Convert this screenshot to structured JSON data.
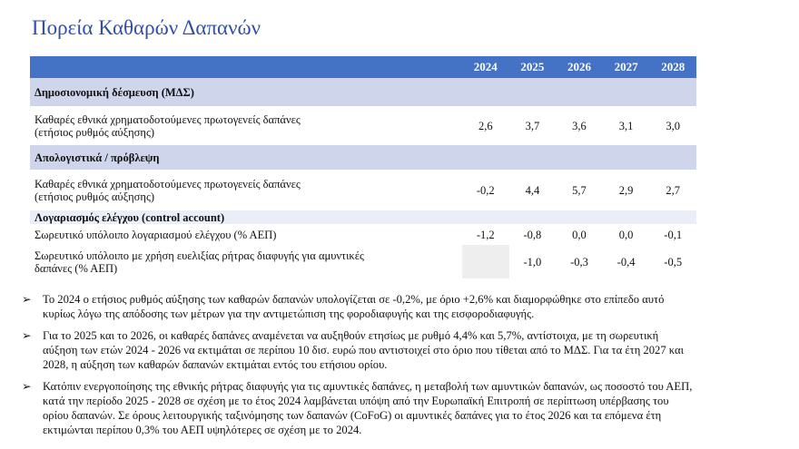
{
  "title": "Πορεία Καθαρών Δαπανών",
  "table": {
    "header": [
      "2024",
      "2025",
      "2026",
      "2027",
      "2028"
    ],
    "sections": [
      {
        "heading": "Δημοσιονομική δέσμευση (ΜΔΣ)",
        "rows": [
          {
            "label": [
              "Καθαρές εθνικά χρηματοδοτούμενες πρωτογενείς δαπάνες",
              "(ετήσιος ρυθμός αύξησης)"
            ],
            "values": [
              "2,6",
              "3,7",
              "3,6",
              "3,1",
              "3,0"
            ]
          }
        ]
      },
      {
        "heading": "Απολογιστικά / πρόβλεψη",
        "rows": [
          {
            "label": [
              "Καθαρές εθνικά χρηματοδοτούμενες πρωτογενείς δαπάνες",
              "(ετήσιος ρυθμός αύξησης)"
            ],
            "values": [
              "-0,2",
              "4,4",
              "5,7",
              "2,9",
              "2,7"
            ]
          }
        ]
      },
      {
        "heading": "Λογαριασμός ελέγχου (control account)",
        "rows": [
          {
            "label": [
              "Σωρευτικό υπόλοιπο λογαριασμού ελέγχου (% ΑΕΠ)"
            ],
            "values": [
              "-1,2",
              "-0,8",
              "0,0",
              "0,0",
              "-0,1"
            ]
          },
          {
            "label": [
              "Σωρευτικό υπόλοιπο με χρήση ευελιξίας ρήτρας διαφυγής για αμυντικές",
              "δαπάνες  (% ΑΕΠ)"
            ],
            "values": [
              null,
              "-1,0",
              "-0,3",
              "-0,4",
              "-0,5"
            ]
          }
        ]
      }
    ]
  },
  "bullets": [
    [
      "Το 2024 ο ετήσιος ρυθμός αύξησης των καθαρών δαπανών υπολογίζεται σε -0,2%, με όριο +2,6% και διαμορφώθηκε στο επίπεδο αυτό",
      "κυρίως λόγω της απόδοσης των μέτρων για την αντιμετώπιση της φοροδιαφυγής και της εισφοροδιαφυγής."
    ],
    [
      "Για το 2025 και το 2026, οι καθαρές δαπάνες αναμένεται να αυξηθούν ετησίως με ρυθμό 4,4% και 5,7%, αντίστοιχα, με τη σωρευτική",
      "αύξηση των ετών 2024 - 2026 να εκτιμάται σε περίπου 10 δισ. ευρώ που αντιστοιχεί στο όριο που τίθεται από το ΜΔΣ.  Για τα έτη 2027 και",
      "2028, η αύξηση των καθαρών δαπανών εκτιμάται εντός του ετήσιου ορίου."
    ],
    [
      "Κατόπιν ενεργοποίησης της εθνικής ρήτρας διαφυγής για τις αμυντικές δαπάνες, η μεταβολή των αμυντικών δαπανών, ως ποσοστό του ΑΕΠ,",
      "κατά την περίοδο 2025 - 2028 σε σχέση με το έτος 2024 λαμβάνεται υπόψη από την Ευρωπαϊκή Επιτροπή σε περίπτωση υπέρβασης του",
      "ορίου δαπανών. Σε όρους λειτουργικής ταξινόμησης των δαπανών (CoFoG) οι αμυντικές δαπάνες για το έτος 2026 και τα επόμενα έτη",
      "εκτιμώνται περίπου 0,3% του ΑΕΠ υψηλότερες σε σχέση με το 2024."
    ]
  ]
}
